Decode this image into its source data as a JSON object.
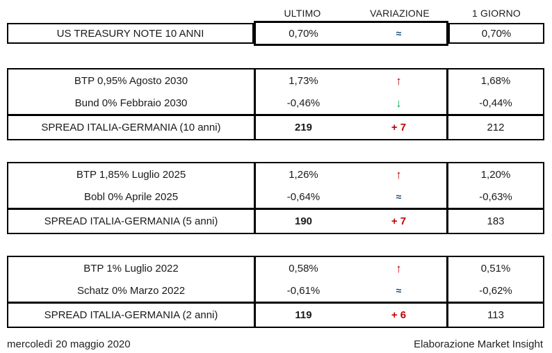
{
  "header": {
    "ultimo": "ULTIMO",
    "variazione": "VARIAZIONE",
    "giorno": "1 GIORNO"
  },
  "treasury": {
    "label": "US TREASURY NOTE 10 ANNI",
    "ultimo": "0,70%",
    "variazione_symbol": "≈",
    "variazione_direction": "flat",
    "giorno": "0,70%"
  },
  "sections": [
    {
      "bonds": [
        {
          "label": "BTP 0,95% Agosto 2030",
          "ultimo": "1,73%",
          "variazione_symbol": "↑",
          "variazione_direction": "up",
          "giorno": "1,68%"
        },
        {
          "label": "Bund 0% Febbraio 2030",
          "ultimo": "-0,46%",
          "variazione_symbol": "↓",
          "variazione_direction": "down",
          "giorno": "-0,44%"
        }
      ],
      "spread": {
        "label": "SPREAD ITALIA-GERMANIA (10 anni)",
        "ultimo": "219",
        "variazione": "+ 7",
        "giorno": "212"
      }
    },
    {
      "bonds": [
        {
          "label": "BTP 1,85% Luglio 2025",
          "ultimo": "1,26%",
          "variazione_symbol": "↑",
          "variazione_direction": "up",
          "giorno": "1,20%"
        },
        {
          "label": "Bobl 0% Aprile 2025",
          "ultimo": "-0,64%",
          "variazione_symbol": "≈",
          "variazione_direction": "flat",
          "giorno": "-0,63%"
        }
      ],
      "spread": {
        "label": "SPREAD ITALIA-GERMANIA (5 anni)",
        "ultimo": "190",
        "variazione": "+ 7",
        "giorno": "183"
      }
    },
    {
      "bonds": [
        {
          "label": "BTP 1% Luglio 2022",
          "ultimo": "0,58%",
          "variazione_symbol": "↑",
          "variazione_direction": "up",
          "giorno": "0,51%"
        },
        {
          "label": "Schatz 0% Marzo 2022",
          "ultimo": "-0,61%",
          "variazione_symbol": "≈",
          "variazione_direction": "flat",
          "giorno": "-0,62%"
        }
      ],
      "spread": {
        "label": "SPREAD ITALIA-GERMANIA (2 anni)",
        "ultimo": "119",
        "variazione": "+ 6",
        "giorno": "113"
      }
    }
  ],
  "footer": {
    "date": "mercoledì 20 maggio 2020",
    "credit": "Elaborazione Market Insight"
  },
  "colors": {
    "up_arrow": "#c00000",
    "down_arrow": "#00b050",
    "flat_symbol": "#1f4e79",
    "spread_change": "#c00000",
    "border": "#000000",
    "text": "#1a1a1a"
  }
}
